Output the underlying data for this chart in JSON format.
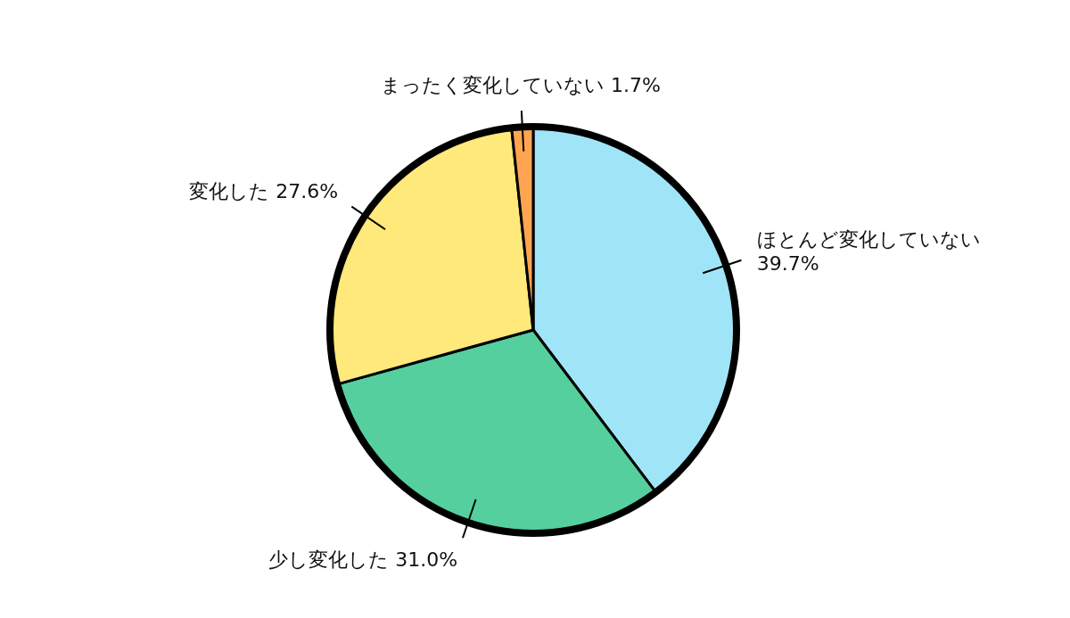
{
  "chart_data": {
    "type": "pie",
    "categories": [
      "ほとんど変化していない",
      "少し変化した",
      "変化した",
      "まったく変化していない"
    ],
    "values": [
      39.7,
      31.0,
      27.6,
      1.7
    ],
    "value_labels": [
      "39.7%",
      "31.0%",
      "27.6%",
      "1.7%"
    ],
    "colors": [
      "#a0e5f7",
      "#55cf9e",
      "#ffe97a",
      "#ffa552"
    ]
  }
}
